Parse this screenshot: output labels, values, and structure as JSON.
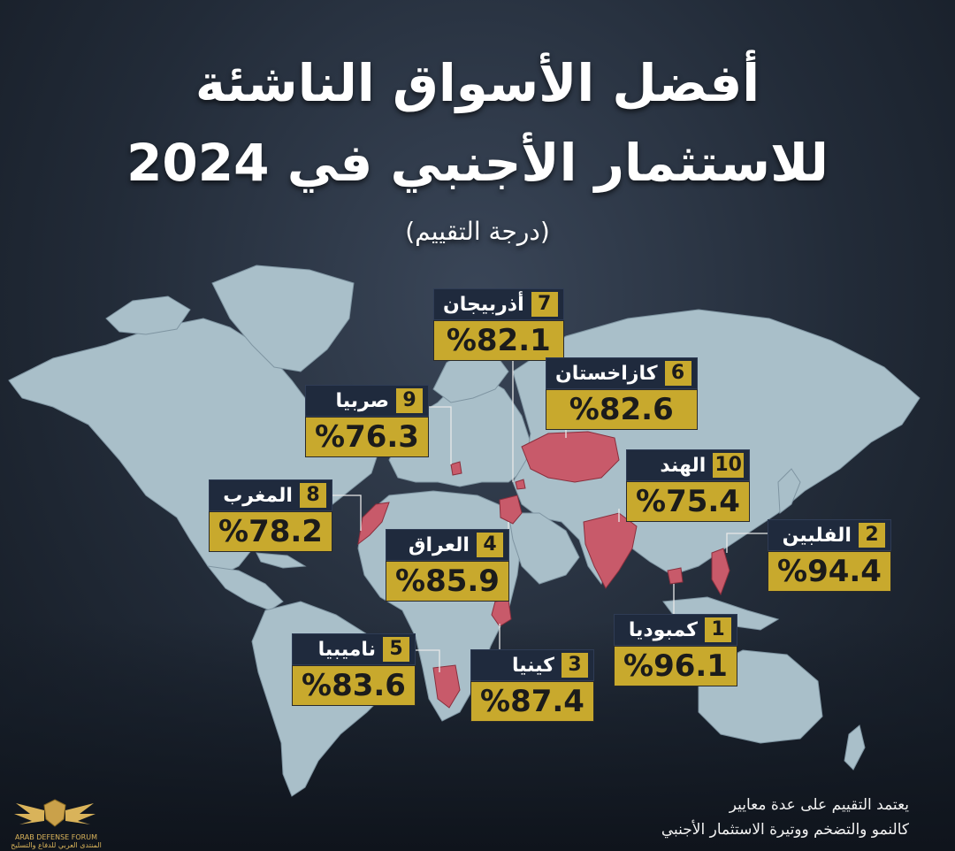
{
  "title": {
    "line1": "أفضل الأسواق الناشئة",
    "line2": "للاستثمار الأجنبي في 2024",
    "subtitle": "(درجة التقييم)"
  },
  "colors": {
    "accent": "#c8a92d",
    "land": "#a9bfc9",
    "highlight": "#c85a6a",
    "label_bg": "#1f2a3d"
  },
  "markets": [
    {
      "rank": "7",
      "name": "أذربيجان",
      "score": "%82.1"
    },
    {
      "rank": "6",
      "name": "كازاخستان",
      "score": "%82.6"
    },
    {
      "rank": "9",
      "name": "صربيا",
      "score": "%76.3"
    },
    {
      "rank": "10",
      "name": "الهند",
      "score": "%75.4"
    },
    {
      "rank": "8",
      "name": "المغرب",
      "score": "%78.2"
    },
    {
      "rank": "2",
      "name": "الفلبين",
      "score": "%94.4"
    },
    {
      "rank": "4",
      "name": "العراق",
      "score": "%85.9"
    },
    {
      "rank": "1",
      "name": "كمبوديا",
      "score": "%96.1"
    },
    {
      "rank": "5",
      "name": "ناميبيا",
      "score": "%83.6"
    },
    {
      "rank": "3",
      "name": "كينيا",
      "score": "%87.4"
    }
  ],
  "footer": {
    "line1": "يعتمد التقييم على عدة معايير",
    "line2": "كالنمو والتضخم ووتيرة الاستثمار الأجنبي"
  },
  "logo": {
    "icon": "shield-wings-logo",
    "text_en": "ARAB DEFENSE FORUM",
    "text_ar": "المنتدى العربي للدفاع والتسليح"
  }
}
